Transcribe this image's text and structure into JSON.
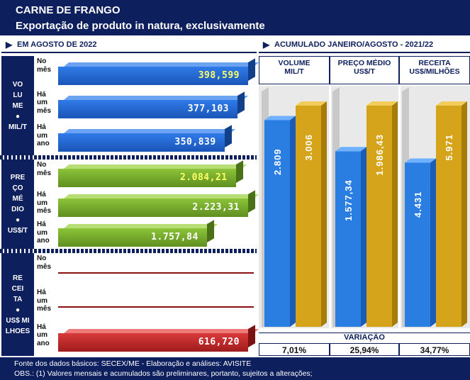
{
  "header": {
    "title": "CARNE DE FRANGO",
    "subtitle": "Exportação de produto in natura, exclusivamente"
  },
  "sections": {
    "left": "EM AGOSTO DE 2022",
    "right": "ACUMULADO JANEIRO/AGOSTO -  2021/22"
  },
  "left_panels": [
    {
      "side_lines": [
        "VO",
        "LU",
        "ME",
        "●",
        "MIL/T"
      ]
    },
    {
      "side_lines": [
        "PRE",
        "ÇO",
        "MÉ",
        "DIO",
        "●",
        "US$/T"
      ]
    },
    {
      "side_lines": [
        "RE",
        "CEI",
        "TA",
        "●",
        "US$ MI",
        "LHOES"
      ]
    }
  ],
  "categories": [
    "No mês",
    "Há um mês",
    "Há um ano"
  ],
  "category_lines": [
    [
      "No",
      "mês"
    ],
    [
      "Há",
      "um",
      "mês"
    ],
    [
      "Há",
      "um",
      "ano"
    ]
  ],
  "chart_data": [
    {
      "type": "bar",
      "categories": [
        "No mês",
        "Há um mês",
        "Há um ano"
      ],
      "values": [
        398599,
        377103,
        350839
      ],
      "labels": [
        "398,599",
        "377,103",
        "350,839"
      ]
    },
    {
      "type": "bar",
      "categories": [
        "No mês",
        "Há um mês",
        "Há um ano"
      ],
      "values": [
        2084.21,
        2223.31,
        1757.84
      ],
      "labels": [
        "2.084,21",
        "2.223,31",
        "1.757,84"
      ]
    },
    {
      "type": "bar",
      "categories": [
        "No mês",
        "Há um mês",
        "Há um ano"
      ],
      "values": [
        null,
        null,
        616720
      ],
      "labels": [
        "",
        "",
        "616,720"
      ]
    },
    {
      "type": "bar",
      "categories": [
        "VOLUME MIL/T",
        "PREÇO MÉDIO US$/T",
        "RECEITA US$/MILHÕES"
      ],
      "series": [
        {
          "values": [
            2.809,
            1577.34,
            4.431
          ],
          "labels": [
            "2.809",
            "1.577,34",
            "4.431"
          ],
          "color": "#2a7de1"
        },
        {
          "values": [
            3.006,
            1986.43,
            5.971
          ],
          "labels": [
            "3.006",
            "1.986,43",
            "5.971"
          ],
          "color": "#d6a41a"
        }
      ]
    }
  ],
  "right_columns": [
    {
      "line1": "VOLUME",
      "line2": "MIL/T"
    },
    {
      "line1": "PREÇO MÉDIO",
      "line2": "US$/T"
    },
    {
      "line1": "RECEITA",
      "line2": "US$/MILHÕES"
    }
  ],
  "variation": {
    "title": "VARIAÇÃO",
    "values": [
      "7,01%",
      "25,94%",
      "34,77%"
    ]
  },
  "footer": {
    "line1": "Fonte dos dados básicos: SECEX/ME - Elaboração e análises: AVISITE",
    "line2": "OBS.: (1) Valores mensais e acumulados são preliminares, portanto, sujeitos a alterações;"
  }
}
